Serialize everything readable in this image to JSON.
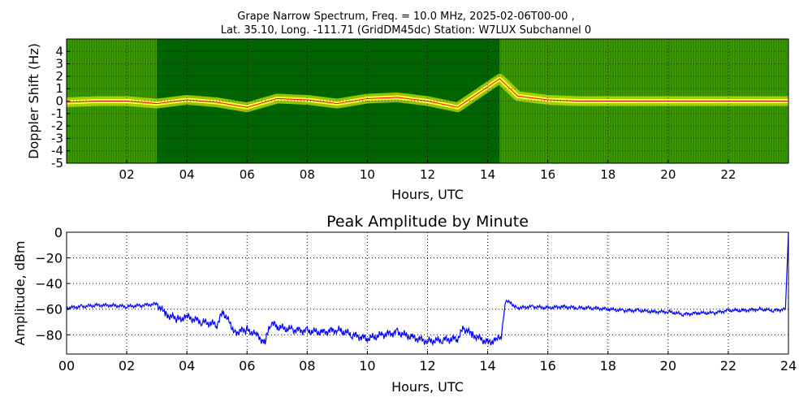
{
  "header": {
    "title_line1": "Grape Narrow Spectrum, Freq. = 10.0 MHz, 2025-02-06T00-00 ,",
    "title_line2": "Lat.  35.10, Long. -111.71 (GridDM45dc) Station: W7LUX Subchannel 0"
  },
  "colors": {
    "spectrum_background": "#006400",
    "spectrum_mid": "#2e8b00",
    "spectrum_band": "#c8e600",
    "spectrum_peak_core": "#ffff40",
    "spectrum_center_line": "#ff0000",
    "amplitude_line": "#0000ff",
    "axis": "#000000",
    "grid": "#000000"
  },
  "chart_data": [
    {
      "type": "heatmap",
      "title": "",
      "xlabel": "Hours, UTC",
      "ylabel": "Doppler Shift (Hz)",
      "xlim": [
        0,
        24
      ],
      "ylim": [
        -5,
        5
      ],
      "x_ticks": [
        "02",
        "04",
        "06",
        "08",
        "10",
        "12",
        "14",
        "16",
        "18",
        "20",
        "22"
      ],
      "x_tick_values": [
        2,
        4,
        6,
        8,
        10,
        12,
        14,
        16,
        18,
        20,
        22
      ],
      "y_ticks": [
        "4",
        "3",
        "2",
        "1",
        "0",
        "-1",
        "-2",
        "-3",
        "-4",
        "-5"
      ],
      "y_tick_values": [
        4,
        3,
        2,
        1,
        0,
        -1,
        -2,
        -3,
        -4,
        -5
      ],
      "grid": true,
      "peak_doppler_trace": {
        "x": [
          0,
          1,
          2,
          3,
          4,
          5,
          6,
          7,
          8,
          9,
          10,
          11,
          12,
          13,
          14.4,
          15,
          16,
          17,
          18,
          19,
          20,
          21,
          22,
          23,
          24
        ],
        "y": [
          -0.1,
          0.0,
          0.0,
          -0.2,
          0.1,
          -0.1,
          -0.5,
          0.2,
          0.1,
          -0.2,
          0.2,
          0.3,
          0.0,
          -0.5,
          1.8,
          0.4,
          0.1,
          0.0,
          0.0,
          0.0,
          0.0,
          0.0,
          0.0,
          0.0,
          0.0
        ]
      }
    },
    {
      "type": "line",
      "title": "Peak Amplitude by Minute",
      "xlabel": "Hours, UTC",
      "ylabel": "Amplitude, dBm",
      "xlim": [
        0,
        24
      ],
      "ylim": [
        -95,
        0
      ],
      "x_ticks": [
        "00",
        "02",
        "04",
        "06",
        "08",
        "10",
        "12",
        "14",
        "16",
        "18",
        "20",
        "22",
        "24"
      ],
      "x_tick_values": [
        0,
        2,
        4,
        6,
        8,
        10,
        12,
        14,
        16,
        18,
        20,
        22,
        24
      ],
      "y_ticks": [
        "0",
        "−20",
        "−40",
        "−60",
        "−80"
      ],
      "y_tick_values": [
        0,
        -20,
        -40,
        -60,
        -80
      ],
      "grid": true,
      "series": [
        {
          "x": [
            0,
            0.5,
            1,
            1.5,
            2,
            2.5,
            3,
            3.3,
            3.7,
            4,
            4.5,
            5,
            5.2,
            5.6,
            6,
            6.3,
            6.6,
            6.8,
            7,
            7.5,
            8,
            8.5,
            9,
            9.5,
            10,
            10.5,
            11,
            11.5,
            12,
            12.5,
            13,
            13.2,
            13.5,
            14,
            14.3,
            14.45,
            14.6,
            15,
            15.5,
            16,
            16.5,
            17,
            17.5,
            18,
            18.5,
            19,
            19.5,
            20,
            20.5,
            21,
            21.5,
            22,
            22.5,
            23,
            23.5,
            23.9,
            24
          ],
          "y": [
            -59,
            -58,
            -57,
            -57,
            -58,
            -57,
            -56,
            -64,
            -68,
            -66,
            -70,
            -72,
            -62,
            -78,
            -76,
            -80,
            -86,
            -70,
            -74,
            -76,
            -77,
            -78,
            -76,
            -80,
            -83,
            -80,
            -78,
            -82,
            -85,
            -84,
            -83,
            -75,
            -80,
            -86,
            -84,
            -82,
            -53,
            -59,
            -58,
            -59,
            -58,
            -59,
            -59,
            -60,
            -61,
            -61,
            -62,
            -62,
            -64,
            -63,
            -63,
            -61,
            -61,
            -60,
            -61,
            -60,
            0
          ]
        }
      ]
    }
  ]
}
